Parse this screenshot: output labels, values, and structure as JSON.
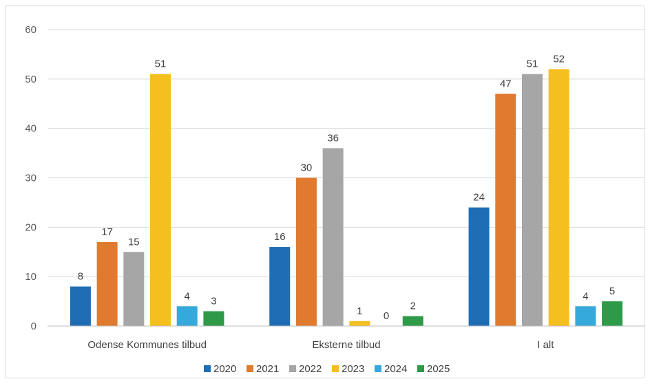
{
  "chart_data": {
    "type": "bar",
    "title": "",
    "xlabel": "",
    "ylabel": "",
    "ylim": [
      0,
      60
    ],
    "yticks": [
      0,
      10,
      20,
      30,
      40,
      50,
      60
    ],
    "categories": [
      "Odense Kommunes tilbud",
      "Eksterne tilbud",
      "I alt"
    ],
    "series": [
      {
        "name": "2020",
        "color": "#1f6eb5",
        "values": [
          8,
          16,
          24
        ]
      },
      {
        "name": "2021",
        "color": "#e07a2e",
        "values": [
          17,
          30,
          47
        ]
      },
      {
        "name": "2022",
        "color": "#a6a6a6",
        "values": [
          15,
          36,
          51
        ]
      },
      {
        "name": "2023",
        "color": "#f5bf1f",
        "values": [
          51,
          1,
          52
        ]
      },
      {
        "name": "2024",
        "color": "#35a9dc",
        "values": [
          4,
          0,
          4
        ]
      },
      {
        "name": "2025",
        "color": "#2e9a48",
        "values": [
          3,
          2,
          5
        ]
      }
    ],
    "grid": true,
    "legend": "bottom"
  }
}
